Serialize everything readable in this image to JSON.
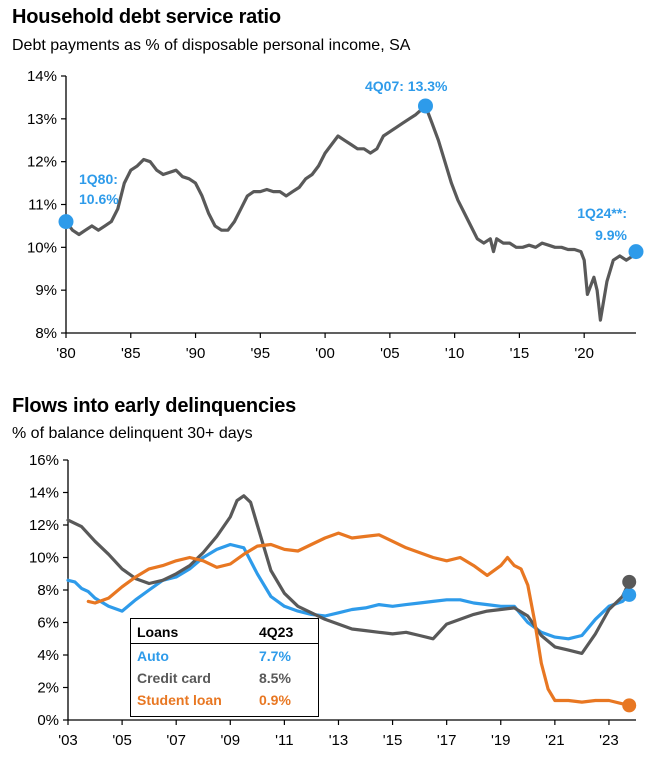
{
  "chart_data": [
    {
      "type": "line",
      "title": "Household debt service ratio",
      "subtitle": "Debt payments as % of disposable personal income, SA",
      "ylim": [
        8,
        14
      ],
      "yticks": [
        "8%",
        "9%",
        "10%",
        "11%",
        "12%",
        "13%",
        "14%"
      ],
      "xlim": [
        1980,
        2024
      ],
      "xticks": [
        "'80",
        "'85",
        "'90",
        "'95",
        "'00",
        "'05",
        "'10",
        "'15",
        "'20"
      ],
      "series": [
        {
          "name": "Debt service ratio",
          "color": "#595959",
          "x": [
            1980.0,
            1980.5,
            1981.0,
            1981.5,
            1982.0,
            1982.5,
            1983.0,
            1983.5,
            1984.0,
            1984.5,
            1985.0,
            1985.5,
            1986.0,
            1986.5,
            1987.0,
            1987.5,
            1988.0,
            1988.5,
            1989.0,
            1989.5,
            1990.0,
            1990.5,
            1991.0,
            1991.5,
            1992.0,
            1992.5,
            1993.0,
            1993.5,
            1994.0,
            1994.5,
            1995.0,
            1995.5,
            1996.0,
            1996.5,
            1997.0,
            1997.5,
            1998.0,
            1998.5,
            1999.0,
            1999.5,
            2000.0,
            2000.5,
            2001.0,
            2001.5,
            2002.0,
            2002.5,
            2003.0,
            2003.5,
            2004.0,
            2004.5,
            2005.0,
            2005.5,
            2006.0,
            2006.5,
            2007.0,
            2007.75,
            2008.25,
            2008.75,
            2009.25,
            2009.75,
            2010.25,
            2010.75,
            2011.25,
            2011.75,
            2012.25,
            2012.75,
            2013.0,
            2013.25,
            2013.75,
            2014.25,
            2014.75,
            2015.25,
            2015.75,
            2016.25,
            2016.75,
            2017.25,
            2017.75,
            2018.25,
            2018.75,
            2019.25,
            2019.75,
            2020.0,
            2020.25,
            2020.75,
            2021.0,
            2021.25,
            2021.75,
            2022.25,
            2022.75,
            2023.25,
            2023.75,
            2024.0
          ],
          "values": [
            10.6,
            10.4,
            10.3,
            10.4,
            10.5,
            10.4,
            10.5,
            10.6,
            10.9,
            11.5,
            11.8,
            11.9,
            12.05,
            12.0,
            11.8,
            11.7,
            11.75,
            11.8,
            11.65,
            11.6,
            11.5,
            11.2,
            10.8,
            10.5,
            10.4,
            10.4,
            10.6,
            10.9,
            11.2,
            11.3,
            11.3,
            11.35,
            11.3,
            11.3,
            11.2,
            11.3,
            11.4,
            11.6,
            11.7,
            11.9,
            12.2,
            12.4,
            12.6,
            12.5,
            12.4,
            12.3,
            12.3,
            12.2,
            12.3,
            12.6,
            12.7,
            12.8,
            12.9,
            13.0,
            13.1,
            13.3,
            12.9,
            12.5,
            12.0,
            11.5,
            11.1,
            10.8,
            10.5,
            10.2,
            10.1,
            10.2,
            9.9,
            10.2,
            10.1,
            10.1,
            10.0,
            10.0,
            10.05,
            10.0,
            10.1,
            10.05,
            10.0,
            10.0,
            9.95,
            9.95,
            9.9,
            9.7,
            8.9,
            9.3,
            9.0,
            8.3,
            9.2,
            9.7,
            9.8,
            9.7,
            9.8,
            9.9
          ]
        }
      ],
      "annotations": [
        {
          "label": "1Q80:",
          "label2": "10.6%",
          "x": 1980.0,
          "y": 10.6,
          "color": "#2E9BEA"
        },
        {
          "label": "4Q07:  13.3%",
          "x": 2007.75,
          "y": 13.3,
          "color": "#2E9BEA"
        },
        {
          "label": "1Q24**:",
          "label2": "9.9%",
          "x": 2024.0,
          "y": 9.9,
          "color": "#2E9BEA"
        }
      ]
    },
    {
      "type": "line",
      "title": "Flows into early delinquencies",
      "subtitle": "% of balance delinquent 30+ days",
      "ylim": [
        0,
        16
      ],
      "yticks": [
        "0%",
        "2%",
        "4%",
        "6%",
        "8%",
        "10%",
        "12%",
        "14%",
        "16%"
      ],
      "xlim": [
        2003,
        2024
      ],
      "xticks": [
        "'03",
        "'05",
        "'07",
        "'09",
        "'11",
        "'13",
        "'15",
        "'17",
        "'19",
        "'21",
        "'23"
      ],
      "series": [
        {
          "name": "Auto",
          "color": "#2E9BEA",
          "x": [
            2003.0,
            2003.25,
            2003.5,
            2003.75,
            2004.0,
            2004.5,
            2005.0,
            2005.5,
            2006.0,
            2006.5,
            2007.0,
            2007.5,
            2008.0,
            2008.5,
            2009.0,
            2009.5,
            2010.0,
            2010.5,
            2011.0,
            2011.5,
            2012.0,
            2012.5,
            2013.0,
            2013.5,
            2014.0,
            2014.5,
            2015.0,
            2015.5,
            2016.0,
            2016.5,
            2017.0,
            2017.5,
            2018.0,
            2018.5,
            2019.0,
            2019.5,
            2020.0,
            2020.5,
            2021.0,
            2021.5,
            2022.0,
            2022.5,
            2023.0,
            2023.5,
            2023.75
          ],
          "values": [
            8.6,
            8.5,
            8.1,
            7.9,
            7.5,
            7.0,
            6.7,
            7.4,
            8.0,
            8.6,
            8.8,
            9.3,
            10.0,
            10.5,
            10.8,
            10.6,
            9.0,
            7.6,
            7.0,
            6.7,
            6.5,
            6.4,
            6.6,
            6.8,
            6.9,
            7.1,
            7.0,
            7.1,
            7.2,
            7.3,
            7.4,
            7.4,
            7.2,
            7.1,
            7.0,
            7.0,
            6.0,
            5.4,
            5.1,
            5.0,
            5.2,
            6.2,
            7.0,
            7.3,
            7.7
          ]
        },
        {
          "name": "Credit card",
          "color": "#595959",
          "x": [
            2003.0,
            2003.5,
            2004.0,
            2004.5,
            2005.0,
            2005.5,
            2006.0,
            2006.5,
            2007.0,
            2007.5,
            2008.0,
            2008.5,
            2009.0,
            2009.25,
            2009.5,
            2009.75,
            2010.0,
            2010.5,
            2011.0,
            2011.5,
            2012.0,
            2012.5,
            2013.0,
            2013.5,
            2014.0,
            2014.5,
            2015.0,
            2015.5,
            2016.0,
            2016.5,
            2017.0,
            2017.5,
            2018.0,
            2018.5,
            2019.0,
            2019.5,
            2020.0,
            2020.5,
            2021.0,
            2021.5,
            2022.0,
            2022.5,
            2023.0,
            2023.5,
            2023.75
          ],
          "values": [
            12.3,
            11.9,
            11.0,
            10.2,
            9.3,
            8.7,
            8.4,
            8.6,
            9.0,
            9.5,
            10.3,
            11.3,
            12.5,
            13.5,
            13.8,
            13.4,
            12.0,
            9.2,
            7.8,
            7.0,
            6.6,
            6.2,
            5.9,
            5.6,
            5.5,
            5.4,
            5.3,
            5.4,
            5.2,
            5.0,
            5.9,
            6.2,
            6.5,
            6.7,
            6.8,
            6.9,
            6.4,
            5.2,
            4.5,
            4.3,
            4.1,
            5.3,
            6.8,
            7.6,
            8.5
          ]
        },
        {
          "name": "Student loan",
          "color": "#E87722",
          "x": [
            2003.75,
            2004.0,
            2004.5,
            2005.0,
            2005.5,
            2006.0,
            2006.5,
            2007.0,
            2007.5,
            2008.0,
            2008.5,
            2009.0,
            2009.5,
            2010.0,
            2010.5,
            2011.0,
            2011.5,
            2012.0,
            2012.5,
            2013.0,
            2013.5,
            2014.0,
            2014.5,
            2015.0,
            2015.5,
            2016.0,
            2016.5,
            2017.0,
            2017.5,
            2018.0,
            2018.5,
            2019.0,
            2019.25,
            2019.5,
            2019.75,
            2020.0,
            2020.25,
            2020.5,
            2020.75,
            2021.0,
            2021.5,
            2022.0,
            2022.5,
            2023.0,
            2023.5,
            2023.75
          ],
          "values": [
            7.3,
            7.2,
            7.5,
            8.2,
            8.8,
            9.3,
            9.5,
            9.8,
            10.0,
            9.8,
            9.4,
            9.6,
            10.2,
            10.7,
            10.8,
            10.5,
            10.4,
            10.8,
            11.2,
            11.5,
            11.2,
            11.3,
            11.4,
            11.0,
            10.6,
            10.3,
            10.0,
            9.8,
            10.0,
            9.5,
            8.9,
            9.5,
            10.0,
            9.5,
            9.3,
            8.3,
            6.1,
            3.5,
            1.9,
            1.2,
            1.2,
            1.1,
            1.2,
            1.2,
            1.0,
            0.9
          ]
        }
      ],
      "legend": {
        "header": [
          "Loans",
          "4Q23"
        ],
        "rows": [
          {
            "label": "Auto",
            "value": "7.7%",
            "color": "#2E9BEA"
          },
          {
            "label": "Credit card",
            "value": "8.5%",
            "color": "#595959"
          },
          {
            "label": "Student loan",
            "value": "0.9%",
            "color": "#E87722"
          }
        ]
      }
    }
  ]
}
